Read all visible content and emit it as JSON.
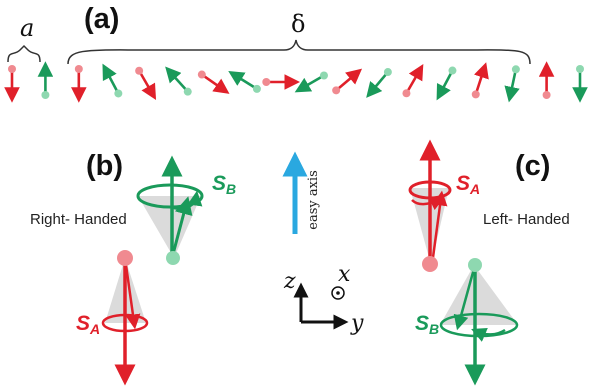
{
  "labels": {
    "panel_a": "(a)",
    "panel_b": "(b)",
    "panel_c": "(c)",
    "lattice_constant": "a",
    "period": "δ",
    "right_handed": "Right- Handed",
    "left_handed": "Left- Handed",
    "easy_axis": "easy axis",
    "spin_A_main": "S",
    "spin_A_sub": "A",
    "spin_B_main": "S",
    "spin_B_sub": "B",
    "axis_z": "z",
    "axis_x": "x",
    "axis_y": "y"
  },
  "colors": {
    "red": "#e0202a",
    "red_ball": "#f08a90",
    "green": "#1a9a5a",
    "green_ball": "#8ed8b0",
    "easy_axis": "#2aa8e0",
    "cone": "#cfcfcf"
  },
  "spin_chain": [
    {
      "color": "red",
      "angle": 180
    },
    {
      "color": "green",
      "angle": 0
    },
    {
      "color": "red",
      "angle": 180
    },
    {
      "color": "green",
      "angle": -28
    },
    {
      "color": "red",
      "angle": 150
    },
    {
      "color": "green",
      "angle": -42
    },
    {
      "color": "red",
      "angle": 125
    },
    {
      "color": "green",
      "angle": -58
    },
    {
      "color": "red",
      "angle": 90
    },
    {
      "color": "green",
      "angle": -120
    },
    {
      "color": "red",
      "angle": 50
    },
    {
      "color": "green",
      "angle": -140
    },
    {
      "color": "red",
      "angle": 30
    },
    {
      "color": "green",
      "angle": -152
    },
    {
      "color": "red",
      "angle": 18
    },
    {
      "color": "green",
      "angle": -168
    },
    {
      "color": "red",
      "angle": 0
    },
    {
      "color": "green",
      "angle": 180
    }
  ]
}
